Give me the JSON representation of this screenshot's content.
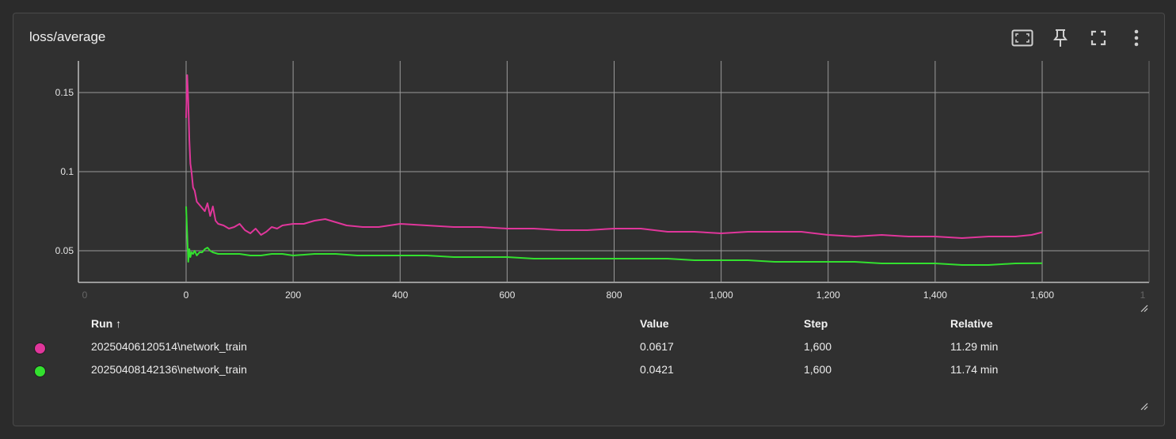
{
  "card": {
    "title": "loss/average",
    "toolbar": [
      {
        "name": "fit-domain-button",
        "icon": "fit-to-screen-icon"
      },
      {
        "name": "pin-button",
        "icon": "pin-icon"
      },
      {
        "name": "fullscreen-button",
        "icon": "fullscreen-icon"
      },
      {
        "name": "more-options-button",
        "icon": "more-vert-icon"
      }
    ]
  },
  "chart_data": {
    "type": "line",
    "title": "loss/average",
    "xlim": [
      -100,
      1600
    ],
    "ylim": [
      0.03,
      0.17
    ],
    "x_ticks": [
      0,
      200,
      400,
      600,
      800,
      1000,
      1200,
      1400,
      1600
    ],
    "x_tick_labels": [
      "0",
      "200",
      "400",
      "600",
      "800",
      "1,000",
      "1,200",
      "1,400",
      "1,600"
    ],
    "y_ticks": [
      0.05,
      0.1,
      0.15
    ],
    "y_tick_labels": [
      "0.05",
      "0.1",
      "0.15"
    ],
    "grid": true,
    "series": [
      {
        "name": "20250406120514\\network_train",
        "color": "#e0369b",
        "x": [
          0,
          2,
          4,
          6,
          8,
          10,
          13,
          16,
          20,
          25,
          30,
          35,
          40,
          45,
          50,
          55,
          60,
          70,
          80,
          90,
          100,
          110,
          120,
          130,
          140,
          150,
          160,
          170,
          180,
          200,
          220,
          240,
          260,
          280,
          300,
          330,
          360,
          400,
          450,
          500,
          550,
          600,
          650,
          700,
          750,
          800,
          850,
          900,
          950,
          1000,
          1050,
          1100,
          1150,
          1200,
          1250,
          1300,
          1350,
          1400,
          1450,
          1500,
          1550,
          1580,
          1600
        ],
        "y": [
          0.134,
          0.161,
          0.145,
          0.12,
          0.105,
          0.1,
          0.09,
          0.088,
          0.081,
          0.079,
          0.077,
          0.075,
          0.08,
          0.072,
          0.078,
          0.069,
          0.067,
          0.066,
          0.064,
          0.065,
          0.067,
          0.063,
          0.061,
          0.064,
          0.06,
          0.062,
          0.065,
          0.064,
          0.066,
          0.067,
          0.067,
          0.069,
          0.07,
          0.068,
          0.066,
          0.065,
          0.065,
          0.067,
          0.066,
          0.065,
          0.065,
          0.064,
          0.064,
          0.063,
          0.063,
          0.064,
          0.064,
          0.062,
          0.062,
          0.061,
          0.062,
          0.062,
          0.062,
          0.06,
          0.059,
          0.06,
          0.059,
          0.059,
          0.058,
          0.059,
          0.059,
          0.06,
          0.0617
        ]
      },
      {
        "name": "20250408142136\\network_train",
        "color": "#33e02f",
        "x": [
          0,
          2,
          4,
          6,
          8,
          10,
          13,
          16,
          20,
          25,
          30,
          35,
          40,
          45,
          50,
          60,
          70,
          80,
          100,
          120,
          140,
          160,
          180,
          200,
          240,
          280,
          320,
          360,
          400,
          450,
          500,
          550,
          600,
          650,
          700,
          750,
          800,
          850,
          900,
          950,
          1000,
          1050,
          1100,
          1150,
          1200,
          1250,
          1300,
          1350,
          1400,
          1450,
          1500,
          1550,
          1600
        ],
        "y": [
          0.078,
          0.06,
          0.043,
          0.051,
          0.046,
          0.049,
          0.048,
          0.05,
          0.047,
          0.049,
          0.049,
          0.051,
          0.052,
          0.05,
          0.049,
          0.048,
          0.048,
          0.048,
          0.048,
          0.047,
          0.047,
          0.048,
          0.048,
          0.047,
          0.048,
          0.048,
          0.047,
          0.047,
          0.047,
          0.047,
          0.046,
          0.046,
          0.046,
          0.045,
          0.045,
          0.045,
          0.045,
          0.045,
          0.045,
          0.044,
          0.044,
          0.044,
          0.043,
          0.043,
          0.043,
          0.043,
          0.042,
          0.042,
          0.042,
          0.041,
          0.041,
          0.042,
          0.0421
        ]
      }
    ]
  },
  "table": {
    "headers": {
      "run": "Run ↑",
      "value": "Value",
      "step": "Step",
      "relative": "Relative"
    },
    "rows": [
      {
        "run": "20250406120514\\network_train",
        "value": "0.0617",
        "step": "1,600",
        "relative": "11.29 min",
        "color": "#e0369b"
      },
      {
        "run": "20250408142136\\network_train",
        "value": "0.0421",
        "step": "1,600",
        "relative": "11.74 min",
        "color": "#33e02f"
      }
    ]
  }
}
